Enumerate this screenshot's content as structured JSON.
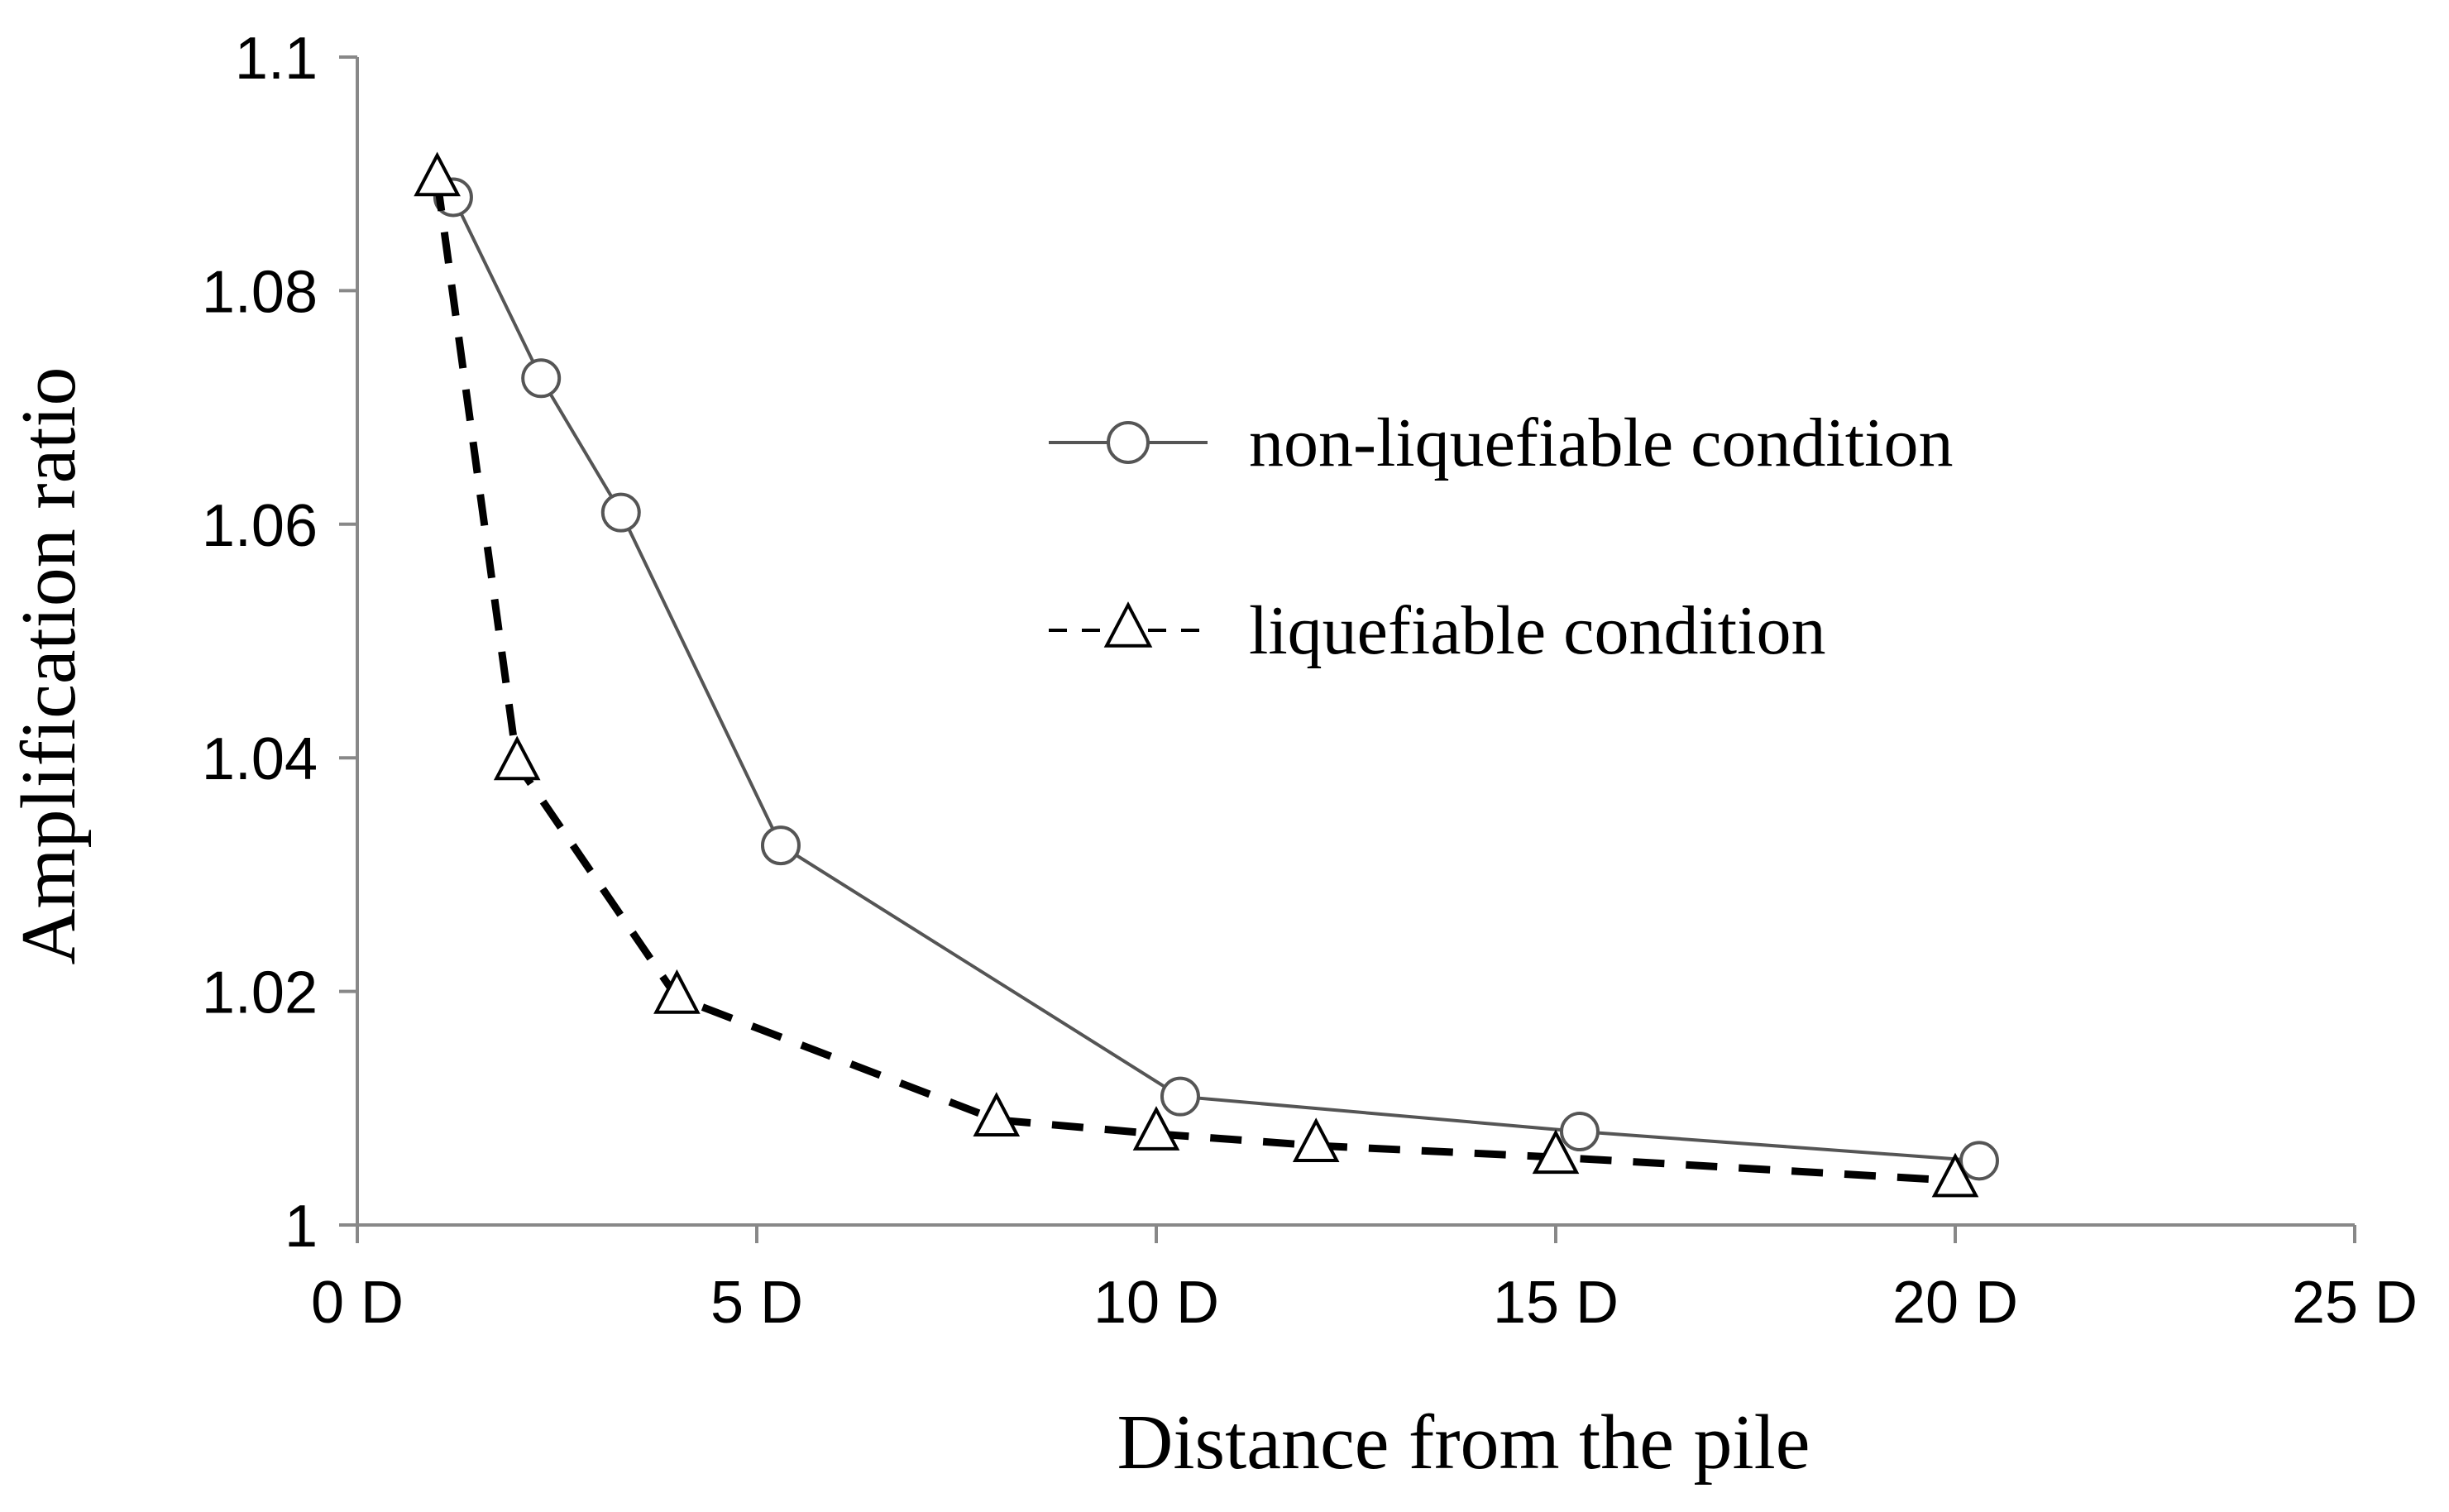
{
  "chart_data": {
    "type": "line",
    "title": "",
    "xlabel": "Distance from the pile",
    "ylabel": "Amplification ratio",
    "xlim": [
      0,
      25
    ],
    "ylim": [
      1,
      1.1
    ],
    "x_ticks": [
      0,
      5,
      10,
      15,
      20,
      25
    ],
    "x_tick_labels": [
      "0 D",
      "5 D",
      "10 D",
      "15 D",
      "20 D",
      "25 D"
    ],
    "y_ticks": [
      1,
      1.02,
      1.04,
      1.06,
      1.08,
      1.1
    ],
    "y_tick_labels": [
      "1",
      "1.02",
      "1.04",
      "1.06",
      "1.08",
      "1.1"
    ],
    "grid": false,
    "legend_position": "right-center",
    "series": [
      {
        "name": "non-liquefiable condition",
        "marker": "circle",
        "line_style": "solid",
        "color": "#555555",
        "x": [
          1.2,
          2.3,
          3.3,
          5.3,
          10.3,
          15.3,
          20.3
        ],
        "y": [
          1.088,
          1.0725,
          1.061,
          1.0325,
          1.011,
          1.008,
          1.0055
        ]
      },
      {
        "name": "liquefiable condition",
        "marker": "triangle",
        "line_style": "dashed",
        "color": "#000000",
        "x": [
          1,
          2,
          4,
          8,
          10,
          12,
          15,
          20
        ],
        "y": [
          1.0895,
          1.0395,
          1.0195,
          1.009,
          1.0078,
          1.0068,
          1.0058,
          1.0038
        ]
      }
    ]
  }
}
